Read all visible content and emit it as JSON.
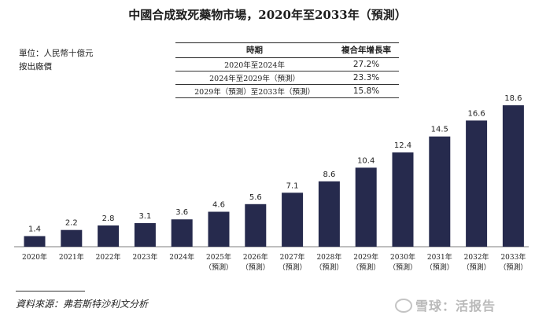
{
  "title": "中國合成致死藥物市場，2020年至2033年（預測）",
  "unit_label": "單位：人民幣十億元",
  "price_label": "按出廠價",
  "cagr_table": {
    "headers": [
      "時期",
      "複合年增長率"
    ],
    "rows": [
      {
        "period": "2020年至2024年",
        "rate": "27.2%"
      },
      {
        "period": "2024年至2029年（預測）",
        "rate": "23.3%"
      },
      {
        "period": "2029年（預測）至2033年（預測）",
        "rate": "15.8%"
      }
    ]
  },
  "chart_data": {
    "type": "bar",
    "title": "中國合成致死藥物市場，2020年至2033年（預測）",
    "categories": [
      "2020年",
      "2021年",
      "2022年",
      "2023年",
      "2024年",
      "2025年",
      "2026年",
      "2027年",
      "2028年",
      "2029年",
      "2030年",
      "2031年",
      "2032年",
      "2033年"
    ],
    "category_suffix": [
      "",
      "",
      "",
      "",
      "",
      "（預測）",
      "（預測）",
      "（預測）",
      "（預測）",
      "（預測）",
      "（預測）",
      "（預測）",
      "（預測）",
      "（預測）"
    ],
    "values": [
      1.4,
      2.2,
      2.8,
      3.1,
      3.6,
      4.6,
      5.6,
      7.1,
      8.6,
      10.4,
      12.4,
      14.5,
      16.6,
      18.6
    ],
    "value_labels": [
      "1.4",
      "2.2",
      "2.8",
      "3.1",
      "3.6",
      "4.6",
      "5.6",
      "7.1",
      "8.6",
      "10.4",
      "12.4",
      "14.5",
      "16.6",
      "18.6"
    ],
    "ylim": [
      0,
      18.6
    ],
    "grid": false,
    "bar_color": "#262a4d"
  },
  "source": "資料來源：弗若斯特沙利文分析",
  "watermark": "雪球：活报告"
}
